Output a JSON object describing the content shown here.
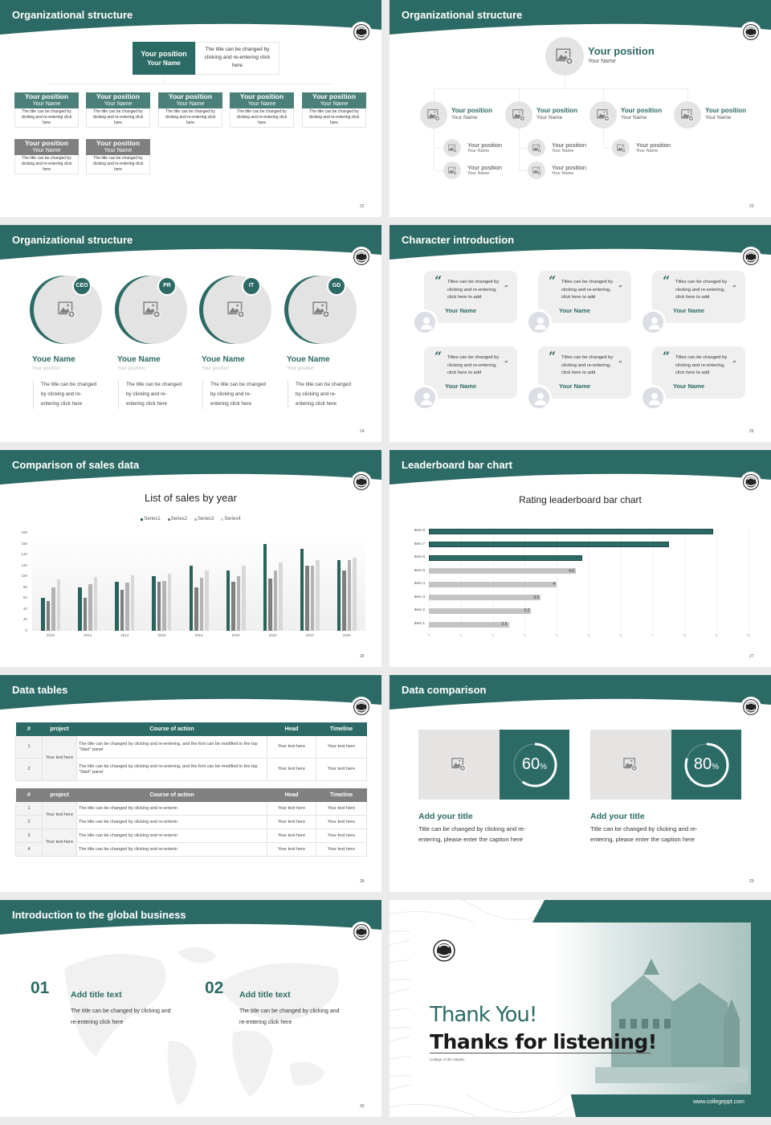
{
  "colors": {
    "teal": "#2c6b65",
    "teal_light": "#4b807a",
    "gray_header": "#808080",
    "series": [
      "#2a625c",
      "#7f7f7f",
      "#b3b3b3",
      "#d8d8d8"
    ]
  },
  "slides": {
    "s22": {
      "title": "Organizational structure",
      "page": "22",
      "top": {
        "position": "Your position",
        "name": "Your Name",
        "desc": "The title can be changed by clicking and re-entering click here"
      },
      "row1": [
        {
          "position": "Your position",
          "name": "Your Name",
          "desc": "The title can be changed by clicking and re-entering click here"
        },
        {
          "position": "Your position",
          "name": "Your Name",
          "desc": "The title can be changed by clicking and re-entering click here"
        },
        {
          "position": "Your position",
          "name": "Your Name",
          "desc": "The title can be changed by clicking and re-entering click here"
        },
        {
          "position": "Your position",
          "name": "Your Name",
          "desc": "The title can be changed by clicking and re-entering click here"
        },
        {
          "position": "Your position",
          "name": "Your Name",
          "desc": "The title can be changed by clicking and re-entering click here"
        }
      ],
      "row2": [
        {
          "position": "Your position",
          "name": "Your Name",
          "desc": "The title can be changed by clicking and re-entering click here"
        },
        {
          "position": "Your position",
          "name": "Your Name",
          "desc": "The title can be changed by clicking and re-entering click here"
        }
      ]
    },
    "s23": {
      "title": "Organizational structure",
      "page": "23",
      "top": {
        "position": "Your position",
        "name": "Your Name"
      },
      "level2": [
        {
          "position": "Your position",
          "name": "Your Name"
        },
        {
          "position": "Your position",
          "name": "Your Name"
        },
        {
          "position": "Your position",
          "name": "Your Name"
        },
        {
          "position": "Your position",
          "name": "Your Name"
        }
      ],
      "level3": [
        {
          "position": "Your position",
          "name": "Your Name"
        },
        {
          "position": "Your position",
          "name": "Your Name"
        },
        {
          "position": "Your position",
          "name": "Your Name"
        },
        {
          "position": "Your position",
          "name": "Your Name"
        },
        {
          "position": "Your position",
          "name": "Your Name"
        }
      ]
    },
    "s24": {
      "title": "Organizational structure",
      "page": "24",
      "members": [
        {
          "badge": "CEO",
          "name": "Youe Name",
          "position": "Your position",
          "desc": "The title can be changed by clicking and re-entering click here"
        },
        {
          "badge": "PR",
          "name": "Youe Name",
          "position": "Your position",
          "desc": "The title can be changed by clicking and re-entering click here"
        },
        {
          "badge": "IT",
          "name": "Youe Name",
          "position": "Your position",
          "desc": "The title can be changed by clicking and re-entering click here"
        },
        {
          "badge": "GD",
          "name": "Youe Name",
          "position": "Your position",
          "desc": "The title can be changed by clicking and re-entering click here"
        }
      ]
    },
    "s25": {
      "title": "Character introduction",
      "page": "25",
      "cards": [
        {
          "quote": "Titles can be changed by clicking and re-entering, click here to add",
          "name": "Your Name"
        },
        {
          "quote": "Titles can be changed by clicking and re-entering, click here to add",
          "name": "Your Name"
        },
        {
          "quote": "Titles can be changed by clicking and re-entering, click here to add",
          "name": "Your Name"
        },
        {
          "quote": "Titles can be changed by clicking and re-entering, click here to add",
          "name": "Your Name"
        },
        {
          "quote": "Titles can be changed by clicking and re-entering, click here to add",
          "name": "Your Name"
        },
        {
          "quote": "Titles can be changed by clicking and re-entering, click here to add",
          "name": "Your Name"
        }
      ]
    },
    "s26": {
      "title": "Comparison of sales data",
      "page": "26"
    },
    "s27": {
      "title": "Leaderboard bar chart",
      "page": "27"
    },
    "s28": {
      "title": "Data tables",
      "page": "28",
      "table1": {
        "headers": [
          "#",
          "project",
          "Course of action",
          "Head",
          "Timeline"
        ],
        "project": "Your text here",
        "rows": [
          {
            "num": "1",
            "action": "The title can be changed by clicking and re-entering, and the font can be modified in the top \"Start\" panel",
            "head": "Your text here",
            "timeline": "Your text here"
          },
          {
            "num": "2",
            "action": "The title can be changed by clicking and re-entering, and the font can be modified in the top \"Start\" panel",
            "head": "Your text here",
            "timeline": "Your text here"
          }
        ]
      },
      "table2": {
        "headers": [
          "#",
          "project",
          "Course of action",
          "Head",
          "Timeline"
        ],
        "projects": [
          "Your text here",
          "Your text here"
        ],
        "rows": [
          {
            "num": "1",
            "action": "The title can be changed by clicking and re-enterin",
            "head": "Your text here",
            "timeline": "Your text here"
          },
          {
            "num": "2",
            "action": "The title can be changed by clicking and re-enterin",
            "head": "Your text here",
            "timeline": "Your text here"
          },
          {
            "num": "3",
            "action": "The title can be changed by clicking and re-enterin",
            "head": "Your text here",
            "timeline": "Your text here"
          },
          {
            "num": "4",
            "action": "The title can be changed by clicking and re-enterin",
            "head": "Your text here",
            "timeline": "Your text here"
          }
        ]
      }
    },
    "s29": {
      "title": "Data comparison",
      "page": "29",
      "items": [
        {
          "percent": 60,
          "value": "60",
          "unit": "%",
          "title": "Add your title",
          "text": "Title can be changed by clicking and re-entering, please enter the caption here"
        },
        {
          "percent": 80,
          "value": "80",
          "unit": "%",
          "title": "Add your title",
          "text": "Title can be changed by clicking and re-entering, please enter the caption here"
        }
      ]
    },
    "s30": {
      "title": "Introduction to the global business",
      "page": "30",
      "items": [
        {
          "num": "01",
          "title": "Add title text",
          "text": "The title can be changed by clicking and re-entering click here"
        },
        {
          "num": "02",
          "title": "Add title text",
          "text": "The title can be changed by clicking and re-entering click here"
        }
      ]
    },
    "s31": {
      "thanks": "Thank You!",
      "subtitle": "Thanks for listening!",
      "college": "College of the Atlantic",
      "url": "www.collegeppt.com"
    }
  },
  "chart_data": [
    {
      "type": "bar",
      "title": "List of sales by year",
      "categories": [
        "2010",
        "2012",
        "2014",
        "2016",
        "2018",
        "2020",
        "2022",
        "2024",
        "2026"
      ],
      "series": [
        {
          "name": "Series1",
          "values": [
            60,
            80,
            90,
            100,
            120,
            110,
            160,
            150,
            130
          ]
        },
        {
          "name": "Series2",
          "values": [
            55,
            60,
            75,
            90,
            80,
            90,
            96,
            120,
            110
          ]
        },
        {
          "name": "Series3",
          "values": [
            80,
            86,
            88,
            92,
            98,
            100,
            110,
            120,
            130
          ]
        },
        {
          "name": "Series4",
          "values": [
            95,
            99,
            102,
            105,
            110,
            120,
            126,
            130,
            135
          ]
        }
      ],
      "ylim": [
        0,
        180
      ],
      "yticks": [
        "0",
        "20",
        "40",
        "60",
        "80",
        "100",
        "120",
        "140",
        "160",
        "180"
      ],
      "legend": "top",
      "grid": false
    },
    {
      "type": "bar",
      "orientation": "horizontal",
      "title": "Rating leaderboard bar chart",
      "categories": [
        "Item 1",
        "Item 2",
        "Item 3",
        "Item 4",
        "Item 5",
        "Item 6",
        "Item 7",
        "Item 8"
      ],
      "values": [
        2.5,
        3.2,
        3.5,
        4,
        4.6,
        4.8,
        7.5,
        8.9
      ],
      "labels": [
        "2.5",
        "3.2",
        "3.5",
        "4",
        "4.6",
        "4.8",
        "7.5",
        "8.9"
      ],
      "highlighted": [
        "Item 6",
        "Item 7",
        "Item 8"
      ],
      "xlim": [
        0,
        10
      ],
      "xticks": [
        "0",
        "1",
        "2",
        "3",
        "4",
        "5",
        "6",
        "7",
        "8",
        "9",
        "10"
      ],
      "grid": true
    }
  ]
}
